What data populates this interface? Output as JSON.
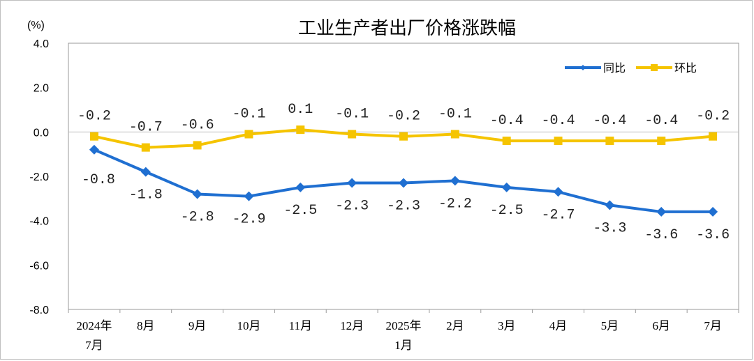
{
  "chart_data": {
    "type": "line",
    "title": "工业生产者出厂价格涨跌幅",
    "ylabel": "(%)",
    "ylim": [
      -8.0,
      4.0
    ],
    "yticks": [
      4.0,
      2.0,
      0.0,
      -2.0,
      -4.0,
      -6.0,
      -8.0
    ],
    "ytick_labels": [
      "4.0",
      "2.0",
      "0.0",
      "-2.0",
      "-4.0",
      "-6.0",
      "-8.0"
    ],
    "categories": [
      [
        "2024年",
        "7月"
      ],
      [
        "8月"
      ],
      [
        "9月"
      ],
      [
        "10月"
      ],
      [
        "11月"
      ],
      [
        "12月"
      ],
      [
        "2025年",
        "1月"
      ],
      [
        "2月"
      ],
      [
        "3月"
      ],
      [
        "4月"
      ],
      [
        "5月"
      ],
      [
        "6月"
      ],
      [
        "7月"
      ]
    ],
    "series": [
      {
        "name": "同比",
        "color": "#1f6fd1",
        "marker": "diamond",
        "values": [
          -0.8,
          -1.8,
          -2.8,
          -2.9,
          -2.5,
          -2.3,
          -2.3,
          -2.2,
          -2.5,
          -2.7,
          -3.3,
          -3.6,
          -3.6
        ],
        "labels": [
          "-0.8",
          "-1.8",
          "-2.8",
          "-2.9",
          "-2.5",
          "-2.3",
          "-2.3",
          "-2.2",
          "-2.5",
          "-2.7",
          "-3.3",
          "-3.6",
          "-3.6"
        ]
      },
      {
        "name": "环比",
        "color": "#f5c400",
        "marker": "square",
        "values": [
          -0.2,
          -0.7,
          -0.6,
          -0.1,
          0.1,
          -0.1,
          -0.2,
          -0.1,
          -0.4,
          -0.4,
          -0.4,
          -0.4,
          -0.2
        ],
        "labels": [
          "-0.2",
          "-0.7",
          "-0.6",
          "-0.1",
          "0.1",
          "-0.1",
          "-0.2",
          "-0.1",
          "-0.4",
          "-0.4",
          "-0.4",
          "-0.4",
          "-0.2"
        ]
      }
    ],
    "legend_position": "top-right",
    "grid": false
  }
}
